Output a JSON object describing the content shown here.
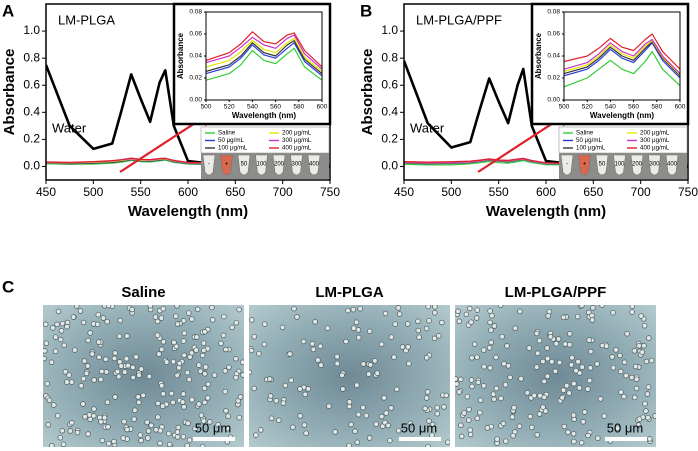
{
  "panel_labels": [
    "A",
    "B",
    "C"
  ],
  "chart_data": [
    {
      "type": "line",
      "label": "LM-PLGA",
      "xlabel": "Wavelength (nm)",
      "ylabel": "Absorbance",
      "xlim": [
        450,
        750
      ],
      "xticks": [
        450,
        500,
        550,
        600,
        650,
        700,
        750
      ],
      "ylim": [
        -0.1,
        1.2
      ],
      "yticks": [
        {
          "value": 0,
          "label": "0.0"
        },
        0.2,
        0.4,
        0.6,
        0.8,
        {
          "value": 1,
          "label": "1.0"
        }
      ],
      "x": [
        450,
        475,
        500,
        520,
        530,
        540,
        550,
        560,
        570,
        576,
        585,
        600,
        650,
        700,
        750
      ],
      "series": [
        {
          "name": "Water",
          "color": "#000000",
          "values": [
            0.75,
            0.3,
            0.13,
            0.17,
            0.42,
            0.68,
            0.5,
            0.33,
            0.62,
            0.71,
            0.3,
            0.04,
            0,
            0,
            0
          ]
        },
        {
          "color": "#33cc33",
          "values": [
            0.02,
            0.016,
            0.018,
            0.024,
            0.032,
            0.045,
            0.036,
            0.033,
            0.042,
            0.047,
            0.03,
            0.018,
            0.01,
            0.008,
            0.006
          ]
        },
        {
          "color": "#2b3fd6",
          "values": [
            0.024,
            0.02,
            0.024,
            0.03,
            0.038,
            0.05,
            0.041,
            0.038,
            0.047,
            0.052,
            0.035,
            0.022,
            0.013,
            0.01,
            0.008
          ]
        },
        {
          "color": "#333333",
          "values": [
            0.026,
            0.022,
            0.026,
            0.032,
            0.04,
            0.052,
            0.043,
            0.04,
            0.05,
            0.054,
            0.037,
            0.024,
            0.014,
            0.011,
            0.009
          ]
        },
        {
          "color": "#e6e600",
          "values": [
            0.028,
            0.025,
            0.03,
            0.036,
            0.044,
            0.054,
            0.046,
            0.043,
            0.052,
            0.056,
            0.039,
            0.026,
            0.016,
            0.012,
            0.01
          ]
        },
        {
          "color": "#cc33cc",
          "values": [
            0.032,
            0.028,
            0.034,
            0.04,
            0.048,
            0.057,
            0.05,
            0.047,
            0.056,
            0.059,
            0.042,
            0.028,
            0.018,
            0.014,
            0.011
          ]
        },
        {
          "color": "#e0202a",
          "values": [
            0.034,
            0.03,
            0.036,
            0.043,
            0.051,
            0.062,
            0.053,
            0.051,
            0.059,
            0.061,
            0.045,
            0.03,
            0.019,
            0.015,
            0.012
          ]
        }
      ]
    },
    {
      "type": "line",
      "xlabel": "Wavelength (nm)",
      "ylabel": "Absorbance",
      "xlim": [
        500,
        600
      ],
      "xticks": [
        500,
        520,
        540,
        560,
        580,
        600
      ],
      "ylim": [
        0,
        0.08
      ],
      "yticks": [
        {
          "value": 0,
          "label": "0.00"
        },
        0.02,
        0.04,
        0.06,
        {
          "value": 0.08,
          "label": "0.08"
        }
      ],
      "x": [
        500,
        520,
        530,
        540,
        550,
        560,
        570,
        576,
        585,
        600
      ],
      "series": [
        {
          "name": "Saline",
          "color": "#33cc33",
          "values": [
            0.018,
            0.024,
            0.032,
            0.045,
            0.036,
            0.033,
            0.042,
            0.047,
            0.03,
            0.018
          ]
        },
        {
          "name": "50 μg/mL",
          "color": "#2b3fd6",
          "values": [
            0.024,
            0.03,
            0.038,
            0.05,
            0.041,
            0.038,
            0.047,
            0.052,
            0.035,
            0.022
          ]
        },
        {
          "name": "100 μg/mL",
          "color": "#333333",
          "values": [
            0.026,
            0.032,
            0.04,
            0.052,
            0.043,
            0.04,
            0.05,
            0.054,
            0.037,
            0.024
          ]
        },
        {
          "name": "200 μg/mL",
          "color": "#e6e600",
          "values": [
            0.03,
            0.036,
            0.044,
            0.054,
            0.046,
            0.043,
            0.052,
            0.056,
            0.039,
            0.026
          ]
        },
        {
          "name": "300 μg/mL",
          "color": "#cc33cc",
          "values": [
            0.034,
            0.04,
            0.048,
            0.057,
            0.05,
            0.047,
            0.056,
            0.059,
            0.042,
            0.028
          ]
        },
        {
          "name": "400 μg/mL",
          "color": "#e0202a",
          "values": [
            0.036,
            0.043,
            0.051,
            0.062,
            0.053,
            0.051,
            0.059,
            0.061,
            0.045,
            0.03
          ]
        }
      ],
      "tube_labels": [
        "-",
        "+",
        "50",
        "100",
        "200",
        "300",
        "400"
      ]
    },
    {
      "type": "line",
      "label": "LM-PLGA/PPF",
      "xlabel": "Wavelength (nm)",
      "ylabel": "Absorbance",
      "xlim": [
        450,
        750
      ],
      "xticks": [
        450,
        500,
        550,
        600,
        650,
        700,
        750
      ],
      "ylim": [
        -0.1,
        1.2
      ],
      "yticks": [
        {
          "value": 0,
          "label": "0.0"
        },
        0.2,
        0.4,
        0.6,
        0.8,
        {
          "value": 1,
          "label": "1.0"
        }
      ],
      "x": [
        450,
        475,
        500,
        520,
        530,
        540,
        550,
        560,
        570,
        576,
        585,
        600,
        650,
        700,
        750
      ],
      "series": [
        {
          "name": "Water",
          "color": "#000000",
          "values": [
            0.78,
            0.32,
            0.14,
            0.18,
            0.42,
            0.65,
            0.48,
            0.32,
            0.6,
            0.72,
            0.3,
            0.04,
            0,
            0,
            0
          ]
        },
        {
          "color": "#33cc33",
          "values": [
            0.016,
            0.012,
            0.012,
            0.02,
            0.028,
            0.036,
            0.028,
            0.024,
            0.035,
            0.044,
            0.028,
            0.013,
            0.008,
            0.006,
            0.005
          ]
        },
        {
          "color": "#2b3fd6",
          "values": [
            0.024,
            0.02,
            0.022,
            0.028,
            0.036,
            0.046,
            0.038,
            0.034,
            0.045,
            0.052,
            0.036,
            0.02,
            0.012,
            0.009,
            0.007
          ]
        },
        {
          "color": "#333333",
          "values": [
            0.026,
            0.022,
            0.024,
            0.03,
            0.038,
            0.048,
            0.04,
            0.036,
            0.047,
            0.053,
            0.038,
            0.022,
            0.013,
            0.01,
            0.008
          ]
        },
        {
          "color": "#e6e600",
          "values": [
            0.028,
            0.024,
            0.026,
            0.032,
            0.04,
            0.05,
            0.042,
            0.038,
            0.049,
            0.054,
            0.039,
            0.023,
            0.014,
            0.011,
            0.009
          ]
        },
        {
          "color": "#cc33cc",
          "values": [
            0.03,
            0.026,
            0.028,
            0.034,
            0.042,
            0.052,
            0.044,
            0.04,
            0.051,
            0.055,
            0.04,
            0.024,
            0.015,
            0.012,
            0.01
          ]
        },
        {
          "color": "#e0202a",
          "values": [
            0.036,
            0.032,
            0.035,
            0.04,
            0.047,
            0.056,
            0.048,
            0.045,
            0.055,
            0.06,
            0.044,
            0.028,
            0.017,
            0.013,
            0.011
          ]
        }
      ]
    },
    {
      "type": "line",
      "xlabel": "Wavelength (nm)",
      "ylabel": "Absorbance",
      "xlim": [
        500,
        600
      ],
      "xticks": [
        500,
        520,
        540,
        560,
        580,
        600
      ],
      "ylim": [
        0,
        0.08
      ],
      "yticks": [
        {
          "value": 0,
          "label": "0.00"
        },
        0.02,
        0.04,
        0.06,
        {
          "value": 0.08,
          "label": "0.08"
        }
      ],
      "x": [
        500,
        520,
        530,
        540,
        550,
        560,
        570,
        576,
        585,
        600
      ],
      "series": [
        {
          "name": "Saline",
          "color": "#33cc33",
          "values": [
            0.012,
            0.02,
            0.028,
            0.036,
            0.028,
            0.024,
            0.035,
            0.044,
            0.028,
            0.013
          ]
        },
        {
          "name": "50 μg/mL",
          "color": "#2b3fd6",
          "values": [
            0.022,
            0.028,
            0.036,
            0.046,
            0.038,
            0.034,
            0.045,
            0.052,
            0.036,
            0.02
          ]
        },
        {
          "name": "100 μg/mL",
          "color": "#333333",
          "values": [
            0.024,
            0.03,
            0.038,
            0.048,
            0.04,
            0.036,
            0.047,
            0.053,
            0.038,
            0.022
          ]
        },
        {
          "name": "200 μg/mL",
          "color": "#e6e600",
          "values": [
            0.026,
            0.032,
            0.04,
            0.05,
            0.042,
            0.038,
            0.049,
            0.054,
            0.039,
            0.023
          ]
        },
        {
          "name": "300 μg/mL",
          "color": "#cc33cc",
          "values": [
            0.028,
            0.034,
            0.042,
            0.052,
            0.044,
            0.04,
            0.051,
            0.055,
            0.04,
            0.024
          ]
        },
        {
          "name": "400 μg/mL",
          "color": "#e0202a",
          "values": [
            0.035,
            0.04,
            0.047,
            0.056,
            0.048,
            0.045,
            0.055,
            0.06,
            0.044,
            0.028
          ]
        }
      ],
      "tube_labels": [
        "-",
        "+",
        "50",
        "100",
        "200",
        "300",
        "400"
      ]
    }
  ],
  "micrographs": [
    {
      "title": "Saline",
      "scale_bar": "50 μm"
    },
    {
      "title": "LM-PLGA",
      "scale_bar": "50 μm"
    },
    {
      "title": "LM-PLGA/PPF",
      "scale_bar": "50 μm"
    }
  ]
}
